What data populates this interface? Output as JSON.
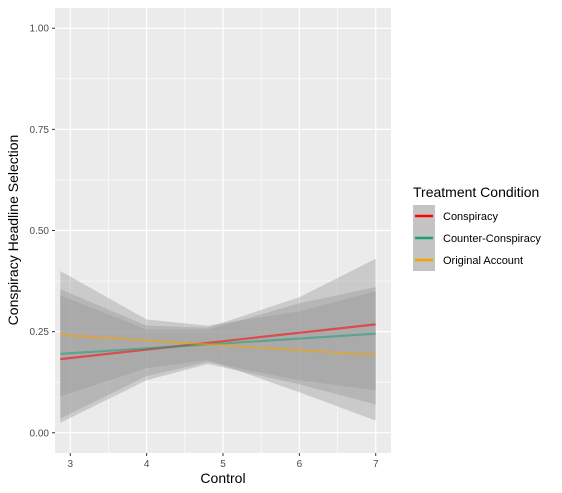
{
  "chart_data": {
    "type": "line",
    "xlabel": "Control",
    "ylabel": "Conspiracy Headline Selection",
    "xlim": [
      2.8,
      7.2
    ],
    "ylim": [
      -0.05,
      1.05
    ],
    "x_ticks": [
      3,
      4,
      5,
      6,
      7
    ],
    "x_tick_labels": [
      "3",
      "4",
      "5",
      "6",
      "7"
    ],
    "y_ticks": [
      0.0,
      0.25,
      0.5,
      0.75,
      1.0
    ],
    "y_tick_labels": [
      "0.00",
      "0.25",
      "0.50",
      "0.75",
      "1.00"
    ],
    "grid": true,
    "legend": {
      "title": "Treatment Condition",
      "placement": "right"
    },
    "series": [
      {
        "name": "Conspiracy",
        "color": "#ff0000",
        "x": [
          2.87,
          7.0
        ],
        "y": [
          0.182,
          0.268
        ],
        "band_x": [
          2.87,
          4.0,
          4.8,
          6.0,
          7.0
        ],
        "band_lower": [
          0.035,
          0.14,
          0.175,
          0.13,
          0.105
        ],
        "band_upper": [
          0.355,
          0.265,
          0.26,
          0.335,
          0.43
        ]
      },
      {
        "name": "Counter-Conspiracy",
        "color": "#1b9e77",
        "x": [
          2.87,
          7.0
        ],
        "y": [
          0.195,
          0.245
        ],
        "band_x": [
          2.87,
          4.0,
          4.8,
          6.0,
          7.0
        ],
        "band_lower": [
          0.025,
          0.13,
          0.17,
          0.12,
          0.07
        ],
        "band_upper": [
          0.34,
          0.255,
          0.255,
          0.32,
          0.36
        ]
      },
      {
        "name": "Original Account",
        "color": "#f5a300",
        "x": [
          2.87,
          7.0
        ],
        "y": [
          0.242,
          0.192
        ],
        "band_x": [
          2.87,
          4.0,
          4.8,
          6.0,
          7.0
        ],
        "band_lower": [
          0.09,
          0.16,
          0.18,
          0.1,
          0.03
        ],
        "band_upper": [
          0.4,
          0.28,
          0.265,
          0.3,
          0.35
        ]
      }
    ]
  }
}
